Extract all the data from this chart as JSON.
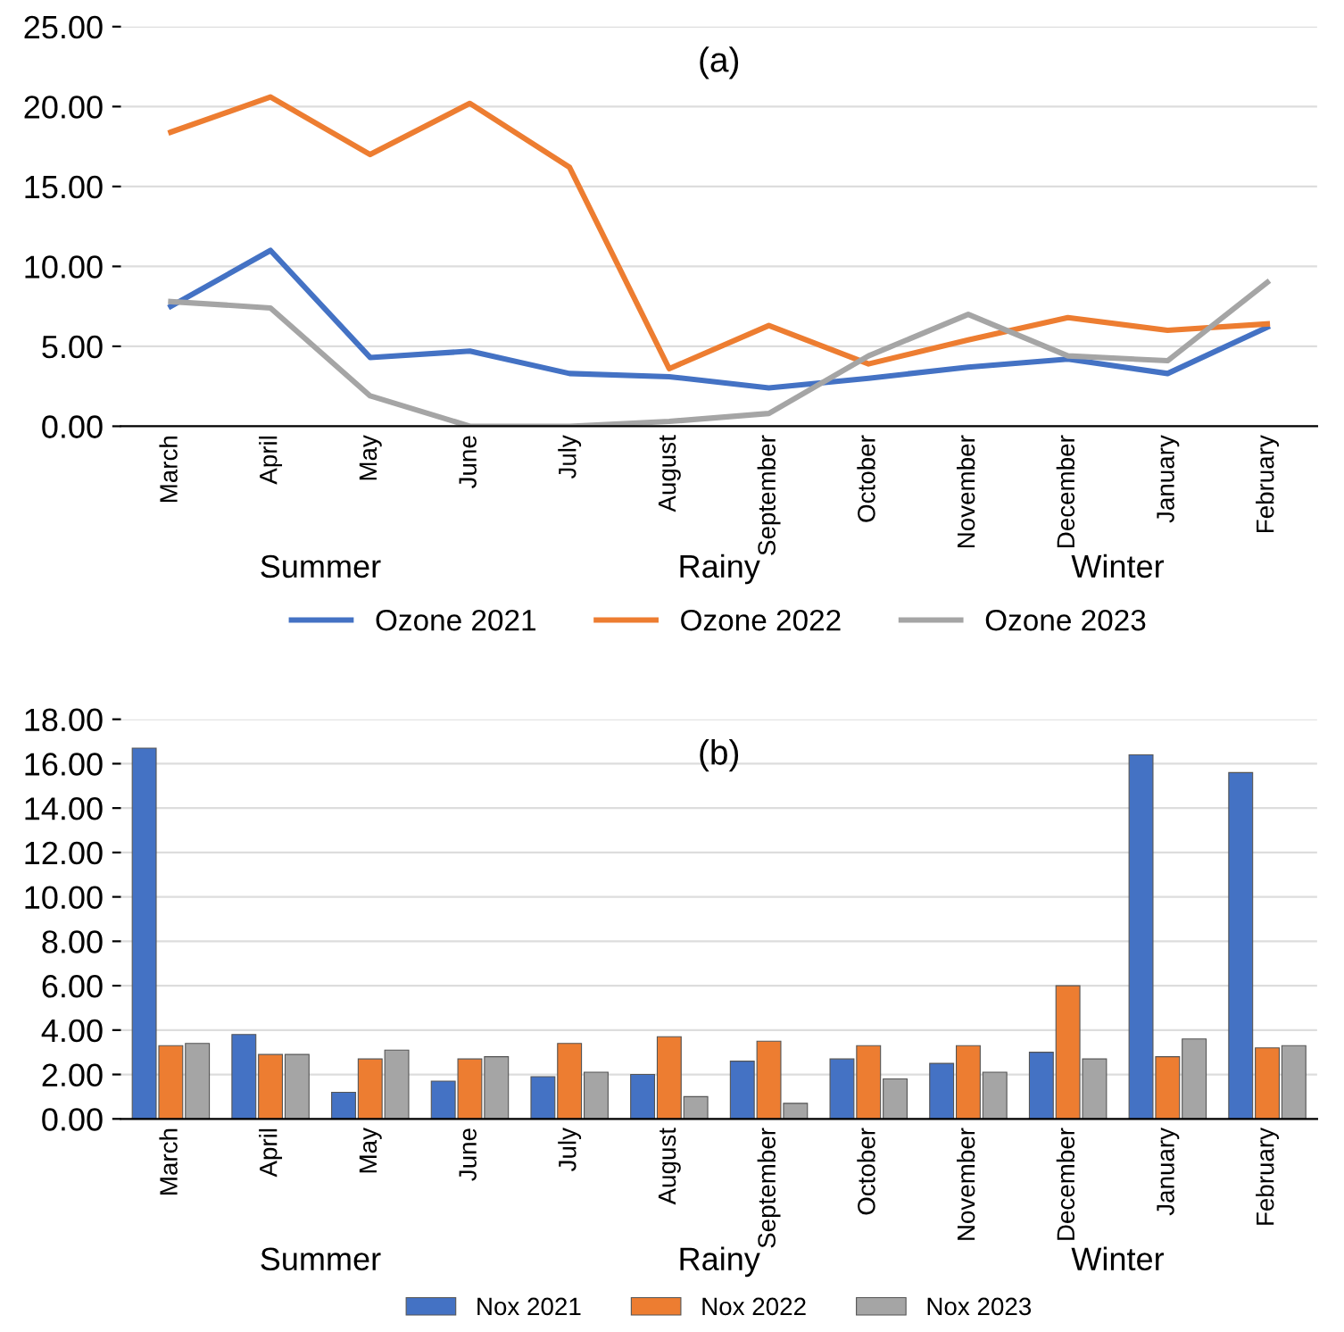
{
  "chart_data": [
    {
      "type": "line",
      "title": "(a)",
      "categories": [
        "March",
        "April",
        "May",
        "June",
        "July",
        "August",
        "September",
        "October",
        "November",
        "December",
        "January",
        "February"
      ],
      "series": [
        {
          "name": "Ozone 2021",
          "color": "#4472c4",
          "values": [
            7.5,
            11.0,
            4.3,
            4.7,
            3.3,
            3.1,
            2.4,
            3.0,
            3.7,
            4.2,
            3.3,
            6.2
          ]
        },
        {
          "name": "Ozone 2022",
          "color": "#ed7d31",
          "values": [
            18.4,
            20.6,
            17.0,
            20.2,
            16.2,
            3.6,
            6.3,
            3.9,
            5.4,
            6.8,
            6.0,
            6.4
          ]
        },
        {
          "name": "Ozone 2023",
          "color": "#a5a5a5",
          "values": [
            7.8,
            7.4,
            1.9,
            0.0,
            0.0,
            0.3,
            0.8,
            4.4,
            7.0,
            4.4,
            4.1,
            9.0
          ]
        }
      ],
      "ylim": [
        0,
        25
      ],
      "yticks": [
        {
          "value": 0,
          "label": "0.00"
        },
        {
          "value": 5,
          "label": "5.00"
        },
        {
          "value": 10,
          "label": "10.00"
        },
        {
          "value": 15,
          "label": "15.00"
        },
        {
          "value": 20,
          "label": "20.00"
        },
        {
          "value": 25,
          "label": "25.00"
        }
      ],
      "annotations": [
        "Summer",
        "Rainy",
        "Winter"
      ],
      "grid": "y",
      "legend": "bottom",
      "marker": "none",
      "line_style": "solid"
    },
    {
      "type": "bar",
      "title": "(b)",
      "categories": [
        "March",
        "April",
        "May",
        "June",
        "July",
        "August",
        "September",
        "October",
        "November",
        "December",
        "January",
        "February"
      ],
      "series": [
        {
          "name": "Nox 2021",
          "color": "#4472c4",
          "values": [
            16.7,
            3.8,
            1.2,
            1.7,
            1.9,
            2.0,
            2.6,
            2.7,
            2.5,
            3.0,
            16.4,
            15.6
          ]
        },
        {
          "name": "Nox 2022",
          "color": "#ed7d31",
          "values": [
            3.3,
            2.9,
            2.7,
            2.7,
            3.4,
            3.7,
            3.5,
            3.3,
            3.3,
            6.0,
            2.8,
            3.2
          ]
        },
        {
          "name": "Nox 2023",
          "color": "#a5a5a5",
          "values": [
            3.4,
            2.9,
            3.1,
            2.8,
            2.1,
            1.0,
            0.7,
            1.8,
            2.1,
            2.7,
            3.6,
            3.3
          ]
        }
      ],
      "ylim": [
        0,
        18
      ],
      "yticks": [
        {
          "value": 0,
          "label": "0.00"
        },
        {
          "value": 2,
          "label": "2.00"
        },
        {
          "value": 4,
          "label": "4.00"
        },
        {
          "value": 6,
          "label": "6.00"
        },
        {
          "value": 8,
          "label": "8.00"
        },
        {
          "value": 10,
          "label": "10.00"
        },
        {
          "value": 12,
          "label": "12.00"
        },
        {
          "value": 14,
          "label": "14.00"
        },
        {
          "value": 16,
          "label": "16.00"
        },
        {
          "value": 18,
          "label": "18.00"
        }
      ],
      "annotations": [
        "Summer",
        "Rainy",
        "Winter"
      ],
      "grid": "y",
      "legend": "bottom"
    }
  ]
}
